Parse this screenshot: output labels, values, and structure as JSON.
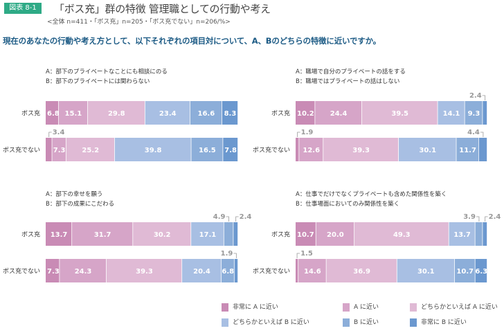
{
  "header": {
    "badge": "図表 8-1",
    "title": "「ボス充」群の特徴 管理職としての行動や考え",
    "subtitle": "<全体 n=411・「ボス充」n=205・「ボス充でない」n=206/%>",
    "question": "現在のあなたの行動や考え方として、以下それぞれの項目対について、A、Bのどちらの特徴に近いですか。"
  },
  "colors": {
    "strongly_a": "#c98bb5",
    "a": "#d6a5c8",
    "somewhat_a": "#e0bad5",
    "somewhat_b": "#a8bfe3",
    "b": "#8caed9",
    "strongly_b": "#6b98cf",
    "badge": "#2eaa86",
    "question_text": "#1e5c86",
    "callout_text": "#999999"
  },
  "legend": [
    {
      "label": "非常に A に近い",
      "color_key": "strongly_a"
    },
    {
      "label": "A に近い",
      "color_key": "a"
    },
    {
      "label": "どちらかといえば A に近い",
      "color_key": "somewhat_a"
    },
    {
      "label": "どちらかといえば B に近い",
      "color_key": "somewhat_b"
    },
    {
      "label": "B に近い",
      "color_key": "b"
    },
    {
      "label": "非常に B に近い",
      "color_key": "strongly_b"
    }
  ],
  "chart_data": [
    {
      "type": "bar",
      "orientation": "horizontal-stacked-100",
      "item_a": "A：部下のプライベートなことにも相談にのる",
      "item_b": "B：部下のプライベートには関わらない",
      "categories": [
        "ボス充",
        "ボス充でない"
      ],
      "series": [
        {
          "name": "非常に A に近い",
          "values": [
            6.8,
            3.4
          ]
        },
        {
          "name": "A に近い",
          "values": [
            15.1,
            7.3
          ]
        },
        {
          "name": "どちらかといえば A に近い",
          "values": [
            29.8,
            25.2
          ]
        },
        {
          "name": "どちらかといえば B に近い",
          "values": [
            23.4,
            39.8
          ]
        },
        {
          "name": "B に近い",
          "values": [
            16.6,
            16.5
          ]
        },
        {
          "name": "非常に B に近い",
          "values": [
            8.3,
            7.8
          ]
        }
      ],
      "unit": "%"
    },
    {
      "type": "bar",
      "orientation": "horizontal-stacked-100",
      "item_a": "A：職場で自分のプライベートの話をする",
      "item_b": "B：職場ではプライベートの話はしない",
      "categories": [
        "ボス充",
        "ボス充でない"
      ],
      "series": [
        {
          "name": "非常に A に近い",
          "values": [
            10.2,
            1.9
          ]
        },
        {
          "name": "A に近い",
          "values": [
            24.4,
            12.6
          ]
        },
        {
          "name": "どちらかといえば A に近い",
          "values": [
            39.5,
            39.3
          ]
        },
        {
          "name": "どちらかといえば B に近い",
          "values": [
            14.1,
            30.1
          ]
        },
        {
          "name": "B に近い",
          "values": [
            9.3,
            11.7
          ]
        },
        {
          "name": "非常に B に近い",
          "values": [
            2.4,
            4.4
          ]
        }
      ],
      "unit": "%"
    },
    {
      "type": "bar",
      "orientation": "horizontal-stacked-100",
      "item_a": "A：部下の幸せを願う",
      "item_b": "B：部下の成果にこだわる",
      "categories": [
        "ボス充",
        "ボス充でない"
      ],
      "series": [
        {
          "name": "非常に A に近い",
          "values": [
            13.7,
            7.3
          ]
        },
        {
          "name": "A に近い",
          "values": [
            31.7,
            24.3
          ]
        },
        {
          "name": "どちらかといえば A に近い",
          "values": [
            30.2,
            39.3
          ]
        },
        {
          "name": "どちらかといえば B に近い",
          "values": [
            17.1,
            20.4
          ]
        },
        {
          "name": "B に近い",
          "values": [
            4.9,
            6.8
          ]
        },
        {
          "name": "非常に B に近い",
          "values": [
            2.4,
            1.9
          ]
        }
      ],
      "unit": "%"
    },
    {
      "type": "bar",
      "orientation": "horizontal-stacked-100",
      "item_a": "A：仕事でだけでなくプライベートも含めた関係性を築く",
      "item_b": "B：仕事場面においてのみ関係性を築く",
      "categories": [
        "ボス充",
        "ボス充でない"
      ],
      "series": [
        {
          "name": "非常に A に近い",
          "values": [
            10.7,
            1.5
          ]
        },
        {
          "name": "A に近い",
          "values": [
            20.0,
            14.6
          ]
        },
        {
          "name": "どちらかといえば A に近い",
          "values": [
            49.3,
            36.9
          ]
        },
        {
          "name": "どちらかといえば B に近い",
          "values": [
            13.7,
            30.1
          ]
        },
        {
          "name": "B に近い",
          "values": [
            3.9,
            10.7
          ]
        },
        {
          "name": "非常に B に近い",
          "values": [
            2.4,
            6.3
          ]
        }
      ],
      "unit": "%"
    }
  ]
}
